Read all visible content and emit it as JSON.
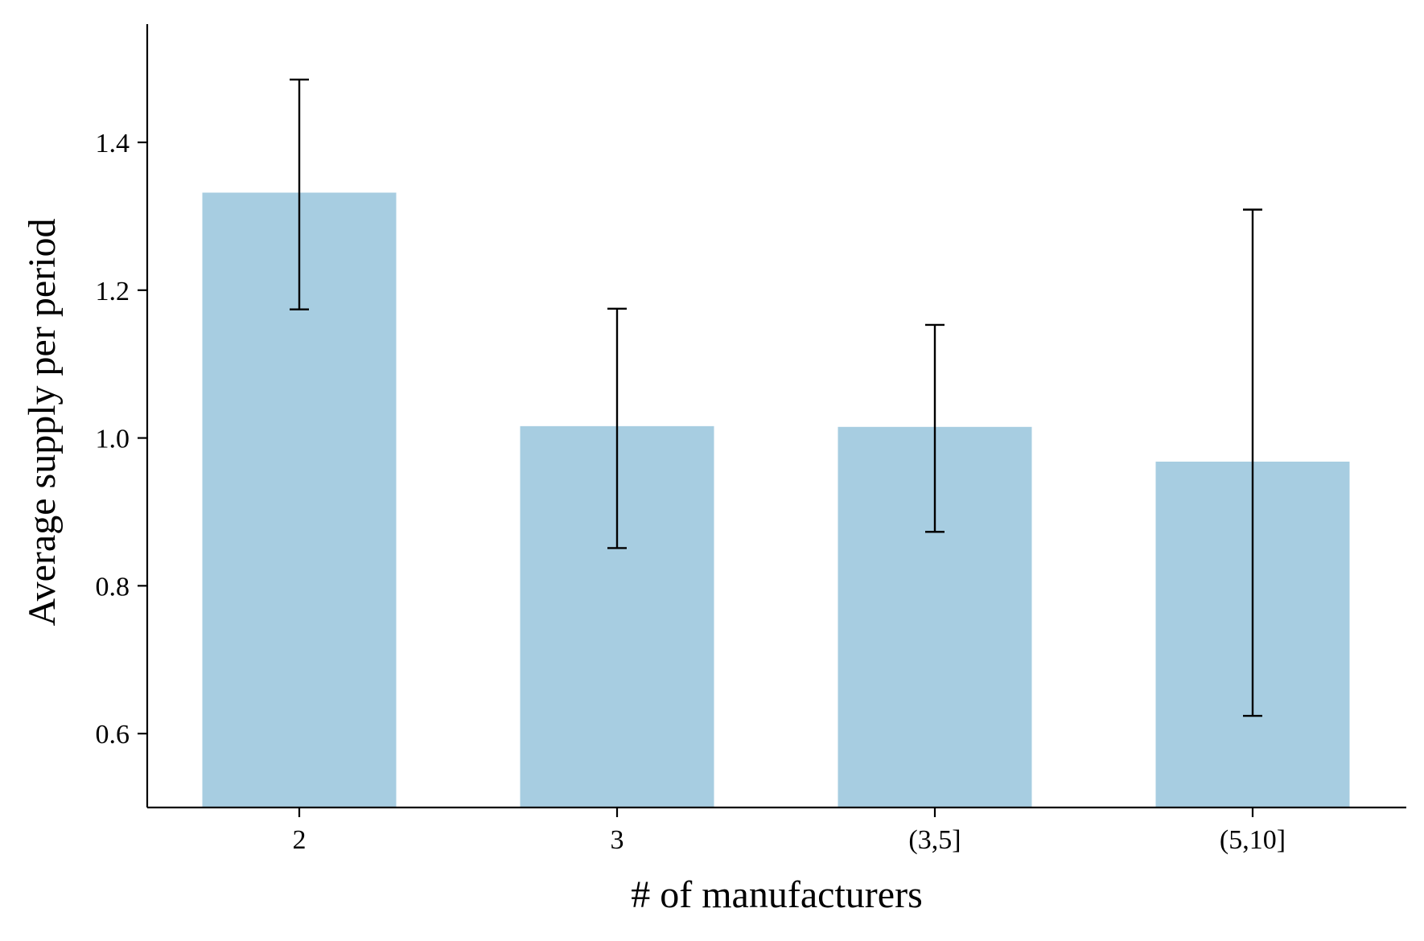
{
  "chart_data": {
    "type": "bar",
    "categories": [
      "2",
      "3",
      "(3,5]",
      "(5,10]"
    ],
    "values": [
      1.332,
      1.016,
      1.015,
      0.968
    ],
    "error_low": [
      1.174,
      0.851,
      0.873,
      0.624
    ],
    "error_high": [
      1.485,
      1.175,
      1.153,
      1.309
    ],
    "xlabel": "# of manufacturers",
    "ylabel": "Average supply per period",
    "ylim": [
      0.5,
      1.56
    ],
    "yticks": [
      0.6,
      0.8,
      1.0,
      1.2,
      1.4
    ],
    "ytick_labels": [
      "0.6",
      "0.8",
      "1.0",
      "1.2",
      "1.4"
    ],
    "grid": false,
    "legend": "none",
    "colors": {
      "bar": "#a7cde1",
      "error_bar": "#000000",
      "axis": "#000000"
    }
  }
}
